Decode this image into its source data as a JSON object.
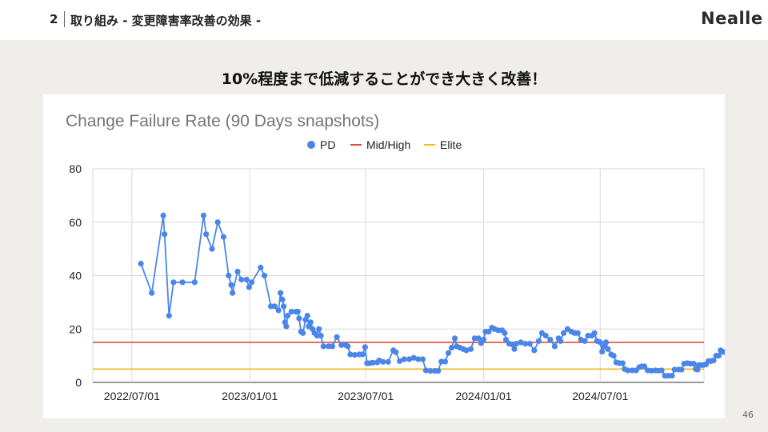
{
  "header": {
    "slide_number": "2",
    "title": "取り組み - 変更障害率改善の効果 -",
    "logo": "Nealle"
  },
  "subtitle": "10%程度まで低減することができ大きく改善！",
  "page_number": "46",
  "colors": {
    "pd": "#4a86e8",
    "mid_high": "#e04b3a",
    "elite": "#f1b924"
  },
  "chart_data": {
    "type": "line",
    "title": "Change Failure Rate (90 Days snapshots)",
    "legend": [
      "PD",
      "Mid/High",
      "Elite"
    ],
    "legend_position": "top",
    "grid": true,
    "ylim": [
      0,
      80
    ],
    "yticks": [
      "0",
      "20",
      "40",
      "60",
      "80"
    ],
    "xticks": [
      {
        "label": "2022/07/01",
        "date": "2022-07-01"
      },
      {
        "label": "2023/01/01",
        "date": "2023-01-01"
      },
      {
        "label": "2023/07/01",
        "date": "2023-07-01"
      },
      {
        "label": "2024/01/01",
        "date": "2024-01-01"
      },
      {
        "label": "2024/07/01",
        "date": "2024-07-01"
      }
    ],
    "xlim": [
      "2022-05-01",
      "2024-12-10"
    ],
    "series": [
      {
        "name": "PD",
        "type": "line-markers",
        "points": [
          [
            "2022-07-15",
            44.5
          ],
          [
            "2022-08-01",
            33.5
          ],
          [
            "2022-08-19",
            62.5
          ],
          [
            "2022-08-21",
            55.5
          ],
          [
            "2022-08-28",
            25
          ],
          [
            "2022-09-04",
            37.5
          ],
          [
            "2022-09-18",
            37.5
          ],
          [
            "2022-10-07",
            37.5
          ],
          [
            "2022-10-21",
            62.5
          ],
          [
            "2022-10-25",
            55.5
          ],
          [
            "2022-11-03",
            50
          ],
          [
            "2022-11-12",
            60
          ],
          [
            "2022-11-21",
            54.5
          ],
          [
            "2022-11-29",
            40
          ],
          [
            "2022-12-03",
            36.5
          ],
          [
            "2022-12-05",
            33.5
          ],
          [
            "2022-12-13",
            41.5
          ],
          [
            "2022-12-19",
            38.5
          ],
          [
            "2022-12-27",
            38.5
          ],
          [
            "2022-12-31",
            35.7
          ],
          [
            "2023-01-04",
            37.5
          ],
          [
            "2023-01-18",
            43
          ],
          [
            "2023-01-24",
            40
          ],
          [
            "2023-02-03",
            28.5
          ],
          [
            "2023-02-09",
            28.5
          ],
          [
            "2023-02-15",
            27
          ],
          [
            "2023-02-18",
            33.5
          ],
          [
            "2023-02-21",
            31
          ],
          [
            "2023-02-23",
            28.5
          ],
          [
            "2023-02-25",
            22.5
          ],
          [
            "2023-02-27",
            21
          ],
          [
            "2023-03-01",
            25
          ],
          [
            "2023-03-07",
            26.5
          ],
          [
            "2023-03-14",
            26.5
          ],
          [
            "2023-03-17",
            26.5
          ],
          [
            "2023-03-19",
            24
          ],
          [
            "2023-03-22",
            19
          ],
          [
            "2023-03-25",
            18.5
          ],
          [
            "2023-03-29",
            23.5
          ],
          [
            "2023-04-01",
            25
          ],
          [
            "2023-04-03",
            21
          ],
          [
            "2023-04-06",
            22.5
          ],
          [
            "2023-04-09",
            20
          ],
          [
            "2023-04-12",
            18.5
          ],
          [
            "2023-04-16",
            17.5
          ],
          [
            "2023-04-19",
            20
          ],
          [
            "2023-04-22",
            17.5
          ],
          [
            "2023-04-26",
            13.5
          ],
          [
            "2023-05-04",
            13.5
          ],
          [
            "2023-05-10",
            13.5
          ],
          [
            "2023-05-17",
            17
          ],
          [
            "2023-05-24",
            14
          ],
          [
            "2023-05-31",
            14
          ],
          [
            "2023-06-03",
            13.5
          ],
          [
            "2023-06-07",
            10.5
          ],
          [
            "2023-06-14",
            10.3
          ],
          [
            "2023-06-21",
            10.5
          ],
          [
            "2023-06-26",
            10.5
          ],
          [
            "2023-06-30",
            13.2
          ],
          [
            "2023-07-03",
            7.2
          ],
          [
            "2023-07-07",
            7.2
          ],
          [
            "2023-07-12",
            7.4
          ],
          [
            "2023-07-19",
            7.5
          ],
          [
            "2023-07-22",
            8.2
          ],
          [
            "2023-07-28",
            7.7
          ],
          [
            "2023-08-05",
            7.7
          ],
          [
            "2023-08-13",
            12
          ],
          [
            "2023-08-17",
            11.3
          ],
          [
            "2023-08-23",
            8
          ],
          [
            "2023-08-30",
            8.7
          ],
          [
            "2023-09-07",
            8.7
          ],
          [
            "2023-09-14",
            9.2
          ],
          [
            "2023-09-21",
            8.7
          ],
          [
            "2023-09-28",
            8.7
          ],
          [
            "2023-10-03",
            4.5
          ],
          [
            "2023-10-10",
            4.3
          ],
          [
            "2023-10-17",
            4.3
          ],
          [
            "2023-10-22",
            4.3
          ],
          [
            "2023-10-27",
            7.8
          ],
          [
            "2023-11-02",
            7.8
          ],
          [
            "2023-11-07",
            11
          ],
          [
            "2023-11-12",
            13
          ],
          [
            "2023-11-17",
            16.5
          ],
          [
            "2023-11-20",
            13.5
          ],
          [
            "2023-11-25",
            13
          ],
          [
            "2023-11-30",
            12.5
          ],
          [
            "2023-12-05",
            12
          ],
          [
            "2023-12-12",
            12.5
          ],
          [
            "2023-12-18",
            16.5
          ],
          [
            "2023-12-24",
            16.5
          ],
          [
            "2023-12-28",
            14.7
          ],
          [
            "2024-01-01",
            16
          ],
          [
            "2024-01-04",
            19
          ],
          [
            "2024-01-09",
            19
          ],
          [
            "2024-01-14",
            20.5
          ],
          [
            "2024-01-18",
            20
          ],
          [
            "2024-01-24",
            19.5
          ],
          [
            "2024-01-30",
            19.5
          ],
          [
            "2024-02-03",
            18.5
          ],
          [
            "2024-02-05",
            16
          ],
          [
            "2024-02-10",
            14.5
          ],
          [
            "2024-02-15",
            14.2
          ],
          [
            "2024-02-18",
            12.5
          ],
          [
            "2024-02-21",
            14.5
          ],
          [
            "2024-02-28",
            15
          ],
          [
            "2024-03-06",
            14.5
          ],
          [
            "2024-03-13",
            14.5
          ],
          [
            "2024-03-20",
            12
          ],
          [
            "2024-03-27",
            15.5
          ],
          [
            "2024-04-01",
            18.5
          ],
          [
            "2024-04-07",
            17.5
          ],
          [
            "2024-04-14",
            16
          ],
          [
            "2024-04-21",
            13.5
          ],
          [
            "2024-04-27",
            16.5
          ],
          [
            "2024-04-30",
            15.5
          ],
          [
            "2024-05-05",
            18.5
          ],
          [
            "2024-05-11",
            20
          ],
          [
            "2024-05-17",
            19
          ],
          [
            "2024-05-22",
            18.5
          ],
          [
            "2024-05-27",
            18.5
          ],
          [
            "2024-06-01",
            16
          ],
          [
            "2024-06-07",
            15.5
          ],
          [
            "2024-06-12",
            17.5
          ],
          [
            "2024-06-18",
            17.5
          ],
          [
            "2024-06-22",
            18.5
          ],
          [
            "2024-06-26",
            15.5
          ],
          [
            "2024-07-01",
            15
          ],
          [
            "2024-07-04",
            11.5
          ],
          [
            "2024-07-07",
            13.5
          ],
          [
            "2024-07-10",
            15
          ],
          [
            "2024-07-13",
            12.5
          ],
          [
            "2024-07-18",
            10.5
          ],
          [
            "2024-07-22",
            10
          ],
          [
            "2024-07-26",
            7.5
          ],
          [
            "2024-07-31",
            7.2
          ],
          [
            "2024-08-05",
            7.2
          ],
          [
            "2024-08-08",
            5
          ],
          [
            "2024-08-13",
            4.5
          ],
          [
            "2024-08-20",
            4.5
          ],
          [
            "2024-08-26",
            4.5
          ],
          [
            "2024-08-31",
            5.7
          ],
          [
            "2024-09-04",
            6
          ],
          [
            "2024-09-08",
            6
          ],
          [
            "2024-09-13",
            4.5
          ],
          [
            "2024-09-19",
            4.4
          ],
          [
            "2024-09-25",
            4.5
          ],
          [
            "2024-09-30",
            4.4
          ],
          [
            "2024-10-05",
            4.5
          ],
          [
            "2024-10-10",
            2.5
          ],
          [
            "2024-10-15",
            2.5
          ],
          [
            "2024-10-21",
            2.5
          ],
          [
            "2024-10-25",
            4.8
          ],
          [
            "2024-10-31",
            4.8
          ],
          [
            "2024-11-05",
            4.8
          ],
          [
            "2024-11-09",
            7
          ],
          [
            "2024-11-14",
            7.2
          ],
          [
            "2024-11-19",
            7
          ],
          [
            "2024-11-24",
            7
          ],
          [
            "2024-11-27",
            5
          ],
          [
            "2024-11-30",
            4.8
          ],
          [
            "2024-12-02",
            6.5
          ],
          [
            "2024-12-05",
            6.5
          ],
          [
            "2024-12-09",
            6.5
          ],
          [
            "2024-12-13",
            6.7
          ],
          [
            "2024-12-17",
            8
          ],
          [
            "2024-12-21",
            8
          ],
          [
            "2024-12-25",
            8.2
          ],
          [
            "2024-12-29",
            10
          ],
          [
            "2025-01-02",
            10
          ],
          [
            "2025-01-05",
            12
          ],
          [
            "2025-01-08",
            11.5
          ],
          [
            "2025-01-12",
            11.3
          ]
        ]
      },
      {
        "name": "Mid/High",
        "type": "hline",
        "value": 15
      },
      {
        "name": "Elite",
        "type": "hline",
        "value": 5
      }
    ]
  }
}
